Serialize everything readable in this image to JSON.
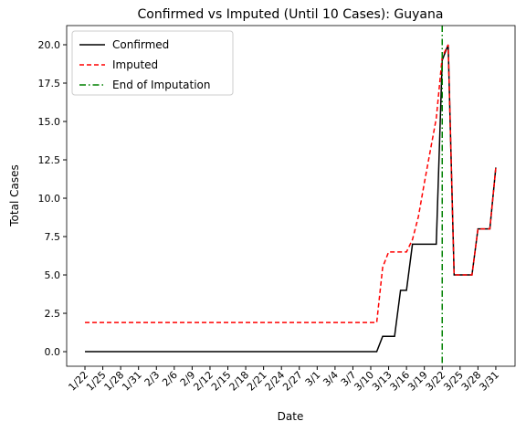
{
  "chart_data": {
    "type": "line",
    "title": "Confirmed vs Imputed (Until 10 Cases): Guyana",
    "xlabel": "Date",
    "ylabel": "Total Cases",
    "categories": [
      "1/22",
      null,
      null,
      "1/25",
      null,
      null,
      "1/28",
      null,
      null,
      "1/31",
      null,
      null,
      "2/3",
      null,
      null,
      "2/6",
      null,
      null,
      "2/9",
      null,
      null,
      "2/12",
      null,
      null,
      "2/15",
      null,
      null,
      "2/18",
      null,
      null,
      "2/21",
      null,
      null,
      "2/24",
      null,
      null,
      "2/27",
      null,
      null,
      "3/1",
      null,
      null,
      "3/4",
      null,
      null,
      "3/7",
      null,
      null,
      "3/10",
      null,
      null,
      "3/13",
      null,
      null,
      "3/16",
      null,
      null,
      "3/19",
      null,
      null,
      "3/22",
      null,
      null,
      "3/25",
      null,
      null,
      "3/28",
      null,
      null,
      "3/31"
    ],
    "series": [
      {
        "name": "Confirmed",
        "color": "#000000",
        "dash": "solid",
        "values": [
          0,
          0,
          0,
          0,
          0,
          0,
          0,
          0,
          0,
          0,
          0,
          0,
          0,
          0,
          0,
          0,
          0,
          0,
          0,
          0,
          0,
          0,
          0,
          0,
          0,
          0,
          0,
          0,
          0,
          0,
          0,
          0,
          0,
          0,
          0,
          0,
          0,
          0,
          0,
          0,
          0,
          0,
          0,
          0,
          0,
          0,
          0,
          0,
          0,
          0,
          1,
          1,
          1,
          4,
          4,
          7,
          7,
          7,
          7,
          7,
          19,
          20,
          5,
          5,
          5,
          5,
          8,
          8,
          8,
          12
        ]
      },
      {
        "name": "Imputed",
        "color": "#ff0000",
        "dash": "dashed",
        "values": [
          1.9,
          1.9,
          1.9,
          1.9,
          1.9,
          1.9,
          1.9,
          1.9,
          1.9,
          1.9,
          1.9,
          1.9,
          1.9,
          1.9,
          1.9,
          1.9,
          1.9,
          1.9,
          1.9,
          1.9,
          1.9,
          1.9,
          1.9,
          1.9,
          1.9,
          1.9,
          1.9,
          1.9,
          1.9,
          1.9,
          1.9,
          1.9,
          1.9,
          1.9,
          1.9,
          1.9,
          1.9,
          1.9,
          1.9,
          1.9,
          1.9,
          1.9,
          1.9,
          1.9,
          1.9,
          1.9,
          1.9,
          1.9,
          1.9,
          1.9,
          5.5,
          6.5,
          6.5,
          6.5,
          6.5,
          7.3,
          8.8,
          11,
          13.1,
          15.2,
          19.2,
          20,
          5,
          5,
          5,
          5,
          8,
          8,
          8,
          12
        ]
      }
    ],
    "vline": {
      "name": "End of Imputation",
      "x": "3/22",
      "color": "#008000"
    },
    "ylim": [
      -0.95,
      21.25
    ],
    "yticks": [
      {
        "value": 0,
        "label": "0.0"
      },
      {
        "value": 2.5,
        "label": "2.5"
      },
      {
        "value": 5,
        "label": "5.0"
      },
      {
        "value": 7.5,
        "label": "7.5"
      },
      {
        "value": 10,
        "label": "10.0"
      },
      {
        "value": 12.5,
        "label": "12.5"
      },
      {
        "value": 15,
        "label": "15.0"
      },
      {
        "value": 17.5,
        "label": "17.5"
      },
      {
        "value": 20,
        "label": "20.0"
      }
    ],
    "legend": "upper left"
  }
}
